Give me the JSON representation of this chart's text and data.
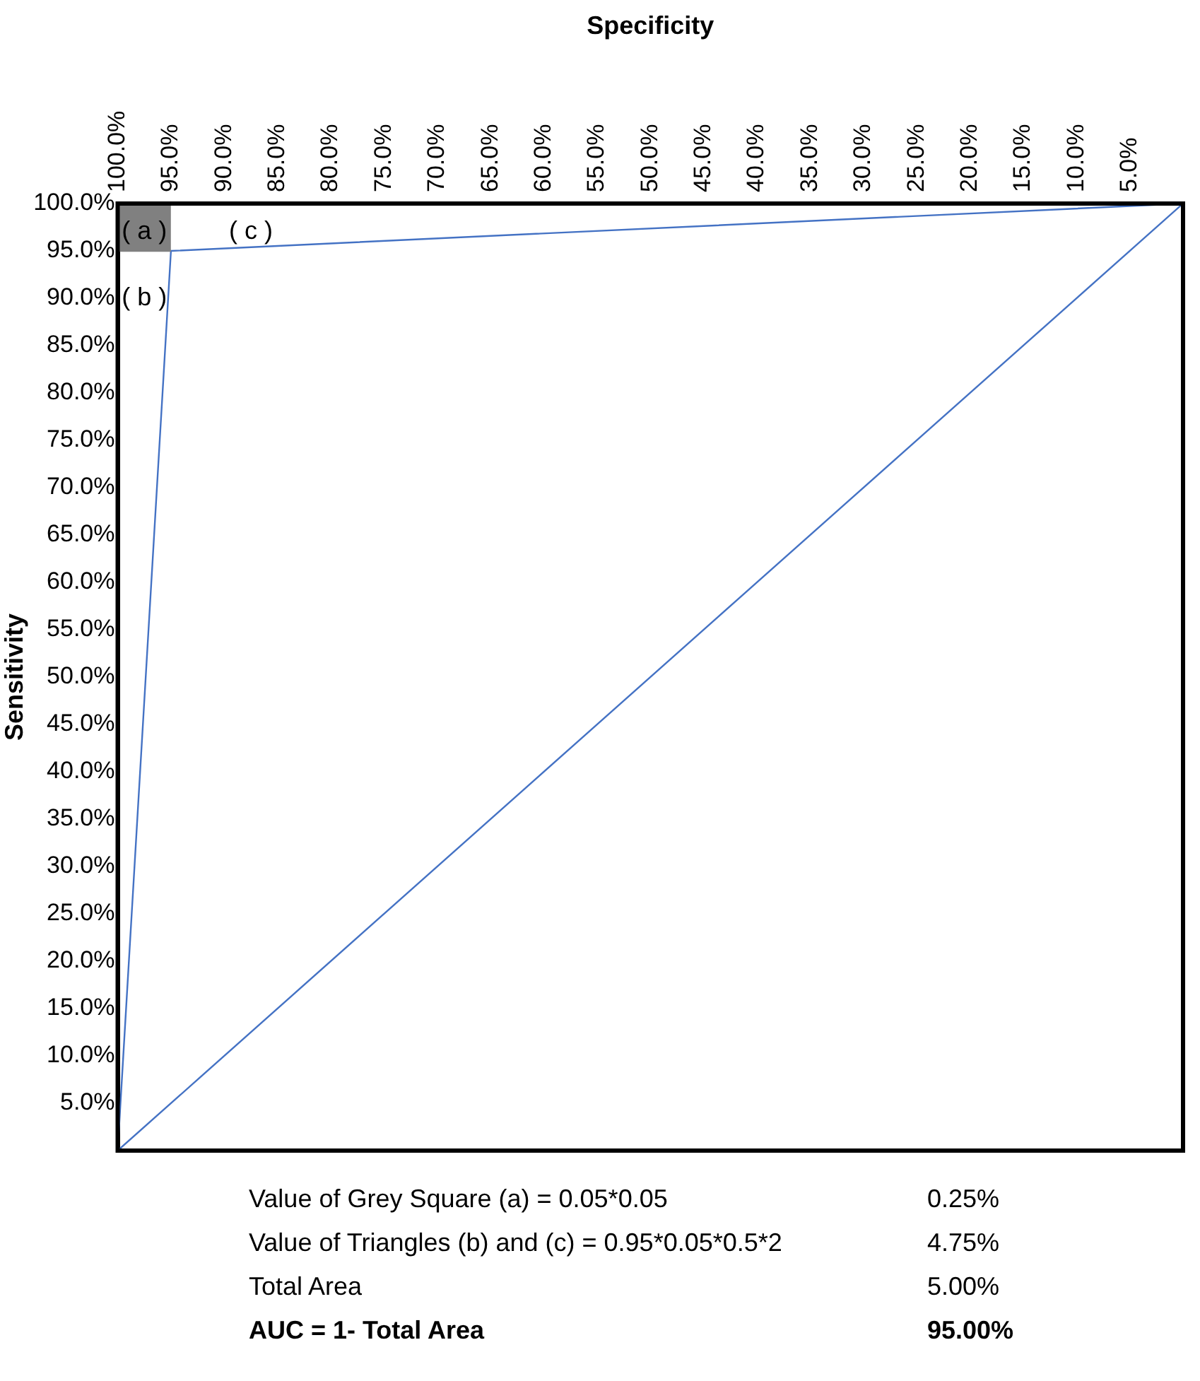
{
  "chart_data": {
    "type": "line",
    "xlabel": "Specificity",
    "ylabel": "Sensitivity",
    "xlim": [
      100,
      0
    ],
    "ylim": [
      0,
      100
    ],
    "xticks": [
      {
        "value": 100,
        "label": "100.0%"
      },
      {
        "value": 95,
        "label": "95.0%"
      },
      {
        "value": 90,
        "label": "90.0%"
      },
      {
        "value": 85,
        "label": "85.0%"
      },
      {
        "value": 80,
        "label": "80.0%"
      },
      {
        "value": 75,
        "label": "75.0%"
      },
      {
        "value": 70,
        "label": "70.0%"
      },
      {
        "value": 65,
        "label": "65.0%"
      },
      {
        "value": 60,
        "label": "60.0%"
      },
      {
        "value": 55,
        "label": "55.0%"
      },
      {
        "value": 50,
        "label": "50.0%"
      },
      {
        "value": 45,
        "label": "45.0%"
      },
      {
        "value": 40,
        "label": "40.0%"
      },
      {
        "value": 35,
        "label": "35.0%"
      },
      {
        "value": 30,
        "label": "30.0%"
      },
      {
        "value": 25,
        "label": "25.0%"
      },
      {
        "value": 20,
        "label": "20.0%"
      },
      {
        "value": 15,
        "label": "15.0%"
      },
      {
        "value": 10,
        "label": "10.0%"
      },
      {
        "value": 5,
        "label": "5.0%"
      }
    ],
    "yticks": [
      {
        "value": 100,
        "label": "100.0%"
      },
      {
        "value": 95,
        "label": "95.0%"
      },
      {
        "value": 90,
        "label": "90.0%"
      },
      {
        "value": 85,
        "label": "85.0%"
      },
      {
        "value": 80,
        "label": "80.0%"
      },
      {
        "value": 75,
        "label": "75.0%"
      },
      {
        "value": 70,
        "label": "70.0%"
      },
      {
        "value": 65,
        "label": "65.0%"
      },
      {
        "value": 60,
        "label": "60.0%"
      },
      {
        "value": 55,
        "label": "55.0%"
      },
      {
        "value": 50,
        "label": "50.0%"
      },
      {
        "value": 45,
        "label": "45.0%"
      },
      {
        "value": 40,
        "label": "40.0%"
      },
      {
        "value": 35,
        "label": "35.0%"
      },
      {
        "value": 30,
        "label": "30.0%"
      },
      {
        "value": 25,
        "label": "25.0%"
      },
      {
        "value": 20,
        "label": "20.0%"
      },
      {
        "value": 15,
        "label": "15.0%"
      },
      {
        "value": 10,
        "label": "10.0%"
      },
      {
        "value": 5,
        "label": "5.0%"
      }
    ],
    "grid": false,
    "legend": false,
    "marker": "none",
    "line_style": "solid",
    "series": [
      {
        "type": "line",
        "color": "#808080",
        "x": [
          100,
          95
        ],
        "values": [
          100,
          100
        ],
        "lower": [
          95,
          95
        ],
        "upper": [
          100,
          100
        ]
      },
      {
        "type": "line",
        "color": "#4472c4",
        "x": [
          100,
          95,
          0
        ],
        "values": [
          0,
          95,
          100
        ]
      },
      {
        "type": "line",
        "color": "#4472c4",
        "x": [
          100,
          0
        ],
        "values": [
          0,
          100
        ]
      }
    ],
    "annotations": [
      "( a )",
      "( b )",
      "( c )",
      "Value of Grey Square (a) = 0.05*0.05",
      "0.25%",
      "Value of Triangles (b) and (c) = 0.95*0.05*0.5*2",
      "4.75%",
      "Total Area",
      "5.00%",
      "AUC = 1- Total Area",
      "95.00%"
    ]
  }
}
